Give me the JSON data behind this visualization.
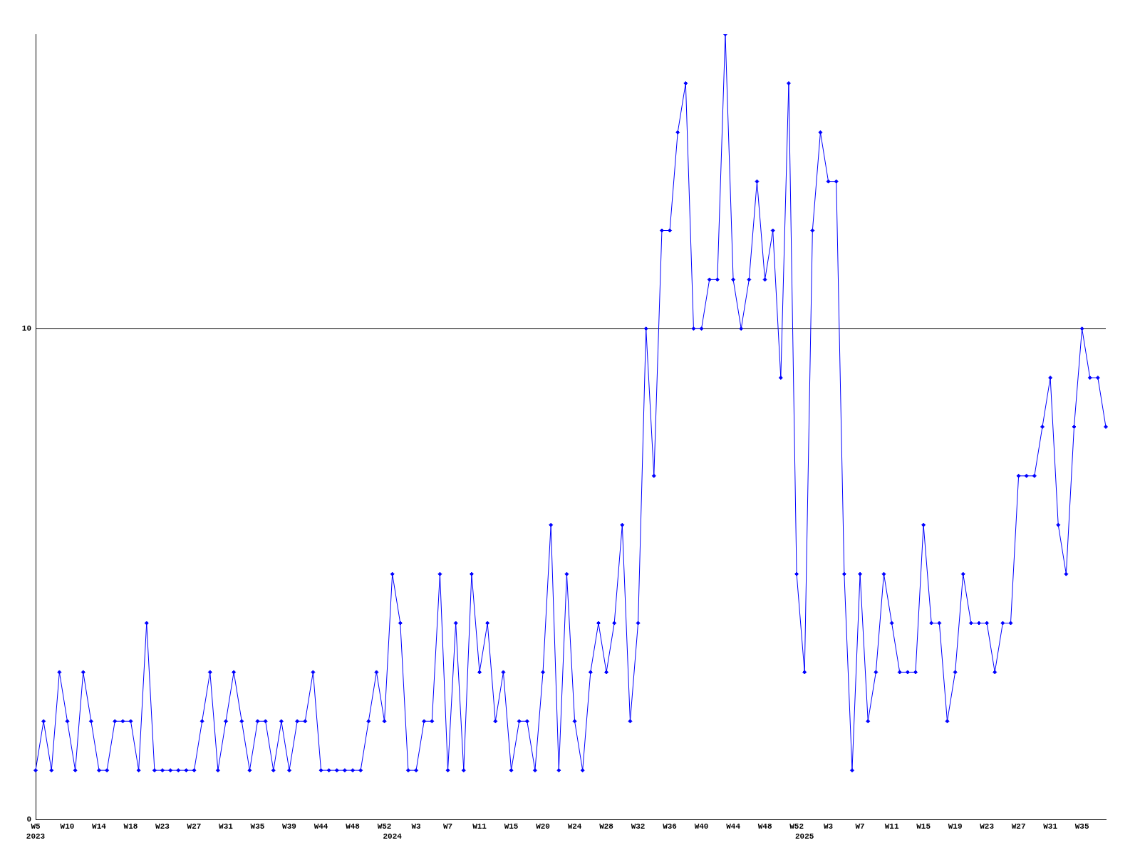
{
  "chart_data": {
    "type": "line",
    "categories": [
      "W5\n2023",
      null,
      null,
      null,
      "W10",
      null,
      null,
      null,
      "W14",
      null,
      null,
      null,
      "W18",
      null,
      null,
      null,
      "W23",
      null,
      null,
      null,
      "W27",
      null,
      null,
      null,
      "W31",
      null,
      null,
      null,
      "W35",
      null,
      null,
      null,
      "W39",
      null,
      null,
      null,
      "W44",
      null,
      null,
      null,
      "W48",
      null,
      null,
      null,
      "W52",
      "\n2024",
      null,
      null,
      "W3",
      null,
      null,
      null,
      "W7",
      null,
      null,
      null,
      "W11",
      null,
      null,
      null,
      "W15",
      null,
      null,
      null,
      "W20",
      null,
      null,
      null,
      "W24",
      null,
      null,
      null,
      "W28",
      null,
      null,
      null,
      "W32",
      null,
      null,
      null,
      "W36",
      null,
      null,
      null,
      "W40",
      null,
      null,
      null,
      "W44",
      null,
      null,
      null,
      "W48",
      null,
      null,
      null,
      "W52",
      "\n2025",
      null,
      null,
      "W3",
      null,
      null,
      null,
      "W7",
      null,
      null,
      null,
      "W11",
      null,
      null,
      null,
      "W15",
      null,
      null,
      null,
      "W19",
      null,
      null,
      null,
      "W23",
      null,
      null,
      null,
      "W27",
      null,
      null,
      null,
      "W31",
      null,
      null,
      null,
      "W35",
      null,
      null,
      null
    ],
    "series": [
      {
        "color": "#0000ff",
        "values": [
          1,
          2,
          1,
          3,
          2,
          1,
          3,
          2,
          1,
          1,
          2,
          2,
          2,
          1,
          4,
          1,
          1,
          1,
          1,
          1,
          1,
          2,
          3,
          1,
          2,
          3,
          2,
          1,
          2,
          2,
          1,
          2,
          1,
          2,
          2,
          3,
          1,
          1,
          1,
          1,
          1,
          1,
          2,
          3,
          2,
          5,
          4,
          1,
          1,
          2,
          2,
          5,
          1,
          4,
          1,
          5,
          3,
          4,
          2,
          3,
          1,
          2,
          2,
          1,
          3,
          6,
          1,
          5,
          2,
          1,
          3,
          4,
          3,
          4,
          6,
          2,
          4,
          10,
          7,
          12,
          12,
          14,
          15,
          10,
          10,
          11,
          11,
          16,
          11,
          10,
          11,
          13,
          11,
          12,
          9,
          15,
          5,
          3,
          12,
          14,
          13,
          13,
          5,
          1,
          5,
          2,
          3,
          5,
          4,
          3,
          3,
          3,
          6,
          4,
          4,
          2,
          3,
          5,
          4,
          4,
          4,
          3,
          4,
          4,
          7,
          7,
          7,
          8,
          9,
          6,
          5,
          8,
          10,
          9,
          9,
          8
        ]
      }
    ],
    "ylim": [
      0,
      16
    ],
    "yticks": [
      0,
      10
    ],
    "grid": "y",
    "legend": false,
    "marker": "diamond",
    "line_style": "solid"
  }
}
